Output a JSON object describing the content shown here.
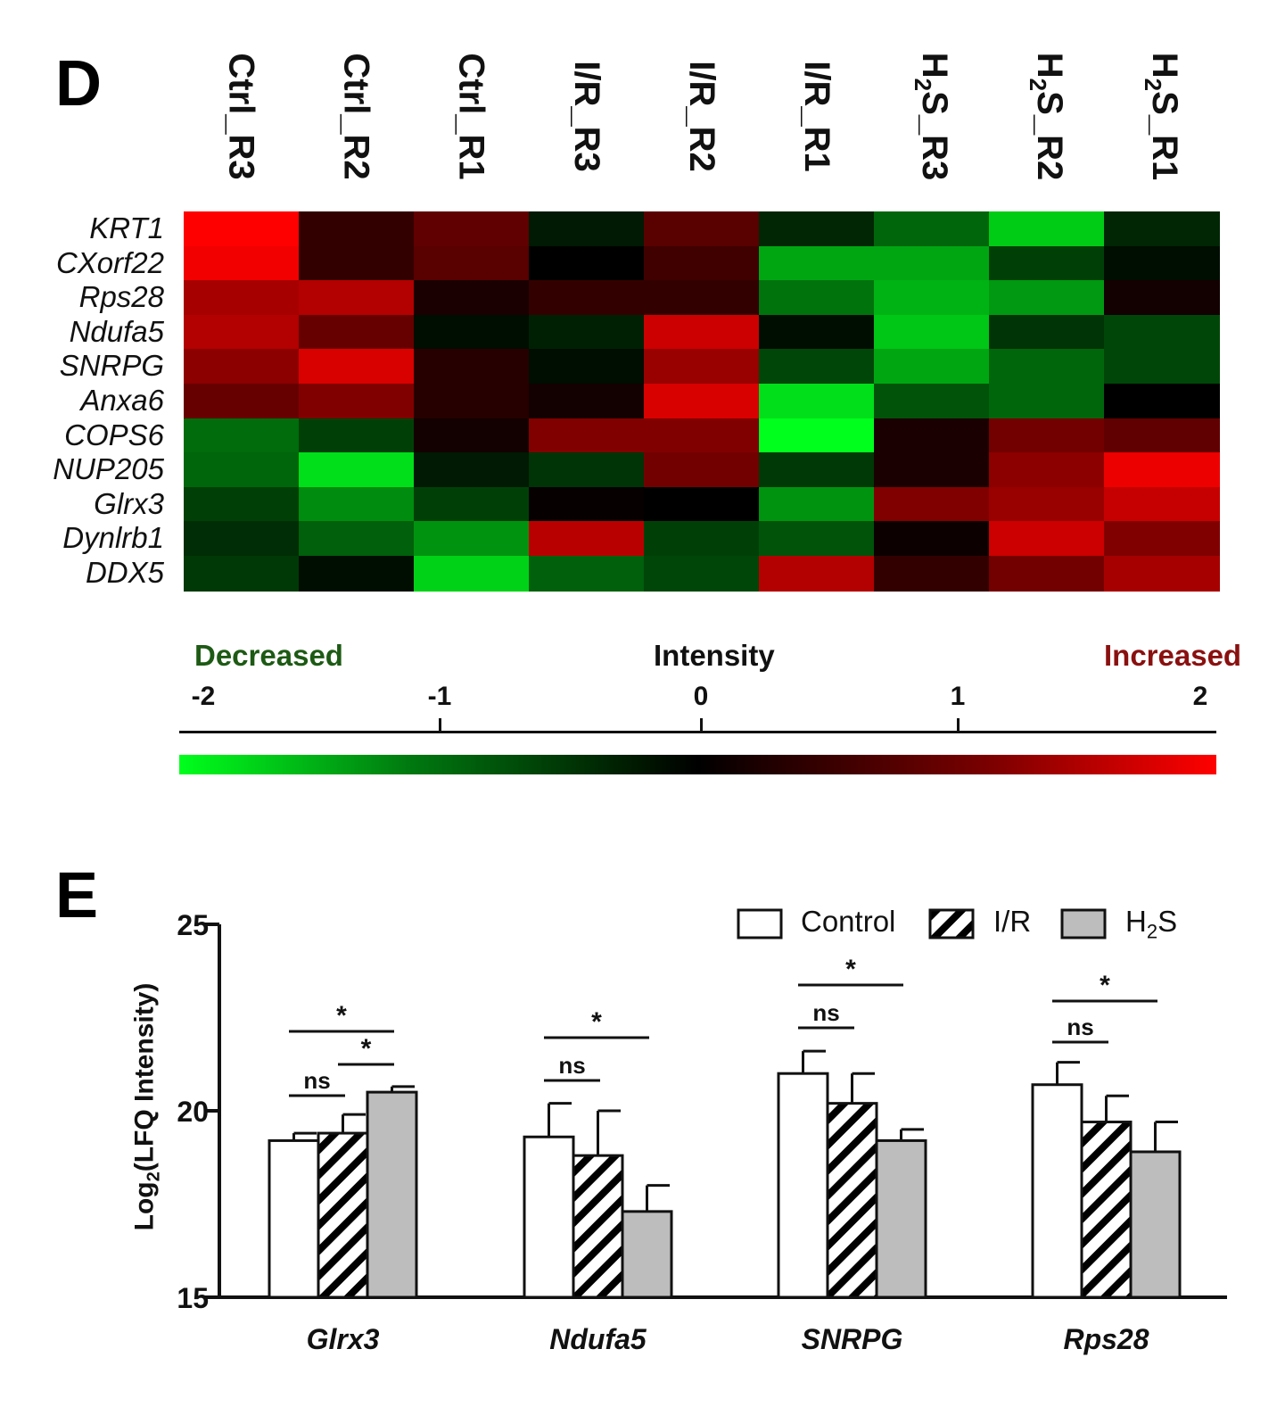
{
  "panel_d": {
    "letter": "D"
  },
  "panel_e": {
    "letter": "E"
  },
  "chart_data": [
    {
      "type": "heatmap",
      "columns": [
        {
          "name": "Ctrl_R3",
          "prefix": "Ctrl_R3",
          "sub": "",
          "suffix": ""
        },
        {
          "name": "Ctrl_R2",
          "prefix": "Ctrl_R2",
          "sub": "",
          "suffix": ""
        },
        {
          "name": "Ctrl_R1",
          "prefix": "Ctrl_R1",
          "sub": "",
          "suffix": ""
        },
        {
          "name": "I/R_R3",
          "prefix": "I/R_R3",
          "sub": "",
          "suffix": ""
        },
        {
          "name": "I/R_R2",
          "prefix": "I/R_R2",
          "sub": "",
          "suffix": ""
        },
        {
          "name": "I/R_R1",
          "prefix": "I/R_R1",
          "sub": "",
          "suffix": ""
        },
        {
          "name": "H2S_R3",
          "prefix": "H",
          "sub": "2",
          "suffix": "S_R3"
        },
        {
          "name": "H2S_R2",
          "prefix": "H",
          "sub": "2",
          "suffix": "S_R2"
        },
        {
          "name": "H2S_R1",
          "prefix": "H",
          "sub": "2",
          "suffix": "S_R1"
        }
      ],
      "rows": [
        "KRT1",
        "CXorf22",
        "Rps28",
        "Ndufa5",
        "SNRPG",
        "Anxa6",
        "COPS6",
        "NUP205",
        "Glrx3",
        "Dynlrb1",
        "DDX5"
      ],
      "values": [
        [
          2.0,
          0.4,
          0.75,
          -0.2,
          0.7,
          -0.3,
          -0.8,
          -1.6,
          -0.3
        ],
        [
          1.9,
          0.4,
          0.7,
          0.0,
          0.5,
          -1.3,
          -1.3,
          -0.5,
          -0.1
        ],
        [
          1.3,
          1.4,
          0.2,
          0.4,
          0.4,
          -0.9,
          -1.4,
          -1.2,
          0.15
        ],
        [
          1.4,
          0.8,
          -0.1,
          -0.25,
          1.6,
          -0.1,
          -1.55,
          -0.4,
          -0.55
        ],
        [
          1.1,
          1.7,
          0.3,
          -0.1,
          1.2,
          -0.55,
          -1.3,
          -0.8,
          -0.55
        ],
        [
          0.8,
          1.0,
          0.3,
          0.15,
          1.7,
          -1.75,
          -0.65,
          -0.8,
          0.0
        ],
        [
          -0.85,
          -0.5,
          0.15,
          1.0,
          1.0,
          -2.0,
          0.2,
          0.9,
          0.75
        ],
        [
          -0.8,
          -1.75,
          -0.2,
          -0.4,
          0.9,
          -0.45,
          0.2,
          1.1,
          1.85
        ],
        [
          -0.5,
          -1.1,
          -0.5,
          0.05,
          0.0,
          -1.15,
          1.0,
          1.2,
          1.55
        ],
        [
          -0.35,
          -0.75,
          -1.15,
          1.45,
          -0.5,
          -0.65,
          0.1,
          1.6,
          1.0
        ],
        [
          -0.45,
          -0.1,
          -1.65,
          -0.75,
          -0.55,
          1.4,
          0.4,
          0.9,
          1.3
        ]
      ],
      "color_scale": {
        "title": "Intensity",
        "low_label": "Decreased",
        "high_label": "Increased",
        "min": -2,
        "max": 2,
        "ticks": [
          "-2",
          "-1",
          "0",
          "1",
          "2"
        ],
        "low_color": "#00ff1c",
        "mid_color": "#000000",
        "high_color": "#ff0000",
        "low_label_color": "#1d5a14",
        "high_label_color": "#8a1010"
      }
    },
    {
      "type": "bar",
      "ylabel": {
        "prefix": "Log",
        "sub": "2",
        "suffix": "(LFQ Intensity)"
      },
      "ylim": [
        15,
        25
      ],
      "yticks": [
        "15",
        "20",
        "25"
      ],
      "categories": [
        "Glrx3",
        "Ndufa5",
        "SNRPG",
        "Rps28"
      ],
      "legend_position": "top-right",
      "series": [
        {
          "name": "Control",
          "name_prefix": "Control",
          "name_sub": "",
          "name_suffix": "",
          "fill": "white",
          "values": [
            19.2,
            19.3,
            21.0,
            20.7
          ],
          "errors": [
            0.2,
            0.9,
            0.6,
            0.6
          ]
        },
        {
          "name": "I/R",
          "name_prefix": "I/R",
          "name_sub": "",
          "name_suffix": "",
          "fill": "hatch",
          "values": [
            19.4,
            18.8,
            20.2,
            19.7
          ],
          "errors": [
            0.5,
            1.2,
            0.8,
            0.7
          ]
        },
        {
          "name": "H2S",
          "name_prefix": "H",
          "name_sub": "2",
          "name_suffix": "S",
          "fill": "#bdbdbd",
          "values": [
            20.5,
            17.3,
            19.2,
            18.9
          ],
          "errors": [
            0.15,
            0.7,
            0.3,
            0.8
          ]
        }
      ],
      "annotations": [
        {
          "category": 0,
          "from": 0,
          "to": 2,
          "label": "*"
        },
        {
          "category": 0,
          "from": 1,
          "to": 2,
          "label": "*"
        },
        {
          "category": 0,
          "from": 0,
          "to": 1,
          "label": "ns"
        },
        {
          "category": 1,
          "from": 0,
          "to": 2,
          "label": "*"
        },
        {
          "category": 1,
          "from": 0,
          "to": 1,
          "label": "ns"
        },
        {
          "category": 2,
          "from": 0,
          "to": 2,
          "label": "*"
        },
        {
          "category": 2,
          "from": 0,
          "to": 1,
          "label": "ns"
        },
        {
          "category": 3,
          "from": 0,
          "to": 2,
          "label": "*"
        },
        {
          "category": 3,
          "from": 0,
          "to": 1,
          "label": "ns"
        }
      ]
    }
  ]
}
